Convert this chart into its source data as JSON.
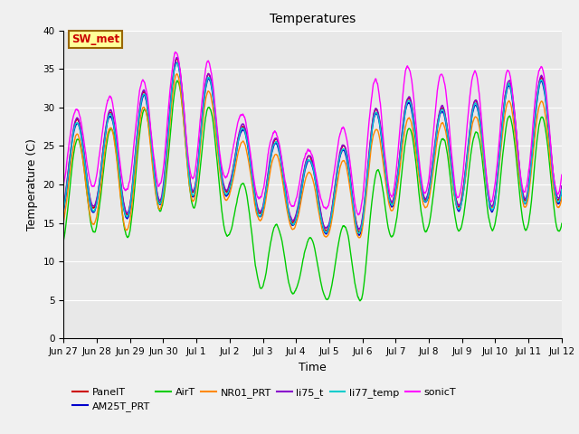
{
  "title": "Temperatures",
  "xlabel": "Time",
  "ylabel": "Temperature (C)",
  "ylim": [
    0,
    40
  ],
  "yticks": [
    0,
    5,
    10,
    15,
    20,
    25,
    30,
    35,
    40
  ],
  "background_color": "#e8e8e8",
  "figure_color": "#f0f0f0",
  "series": {
    "PanelT": {
      "color": "#cc0000",
      "lw": 1.0
    },
    "AM25T_PRT": {
      "color": "#0000cc",
      "lw": 1.0
    },
    "AirT": {
      "color": "#00cc00",
      "lw": 1.0
    },
    "NR01_PRT": {
      "color": "#ff8800",
      "lw": 1.0
    },
    "li75_t": {
      "color": "#8800cc",
      "lw": 1.0
    },
    "li77_temp": {
      "color": "#00cccc",
      "lw": 1.0
    },
    "sonicT": {
      "color": "#ff00ff",
      "lw": 1.0
    }
  },
  "xtick_labels": [
    "Jun 27",
    "Jun 28",
    "Jun 29",
    "Jun 30",
    "Jul 1",
    "Jul 2",
    "Jul 3",
    "Jul 4",
    "Jul 5",
    "Jul 6",
    "Jul 7",
    "Jul 8",
    "Jul 9",
    "Jul 10",
    "Jul 11",
    "Jul 12"
  ],
  "legend_label": "SW_met",
  "legend_facecolor": "#ffff99",
  "legend_edgecolor": "#996600",
  "legend_text_color": "#cc0000"
}
